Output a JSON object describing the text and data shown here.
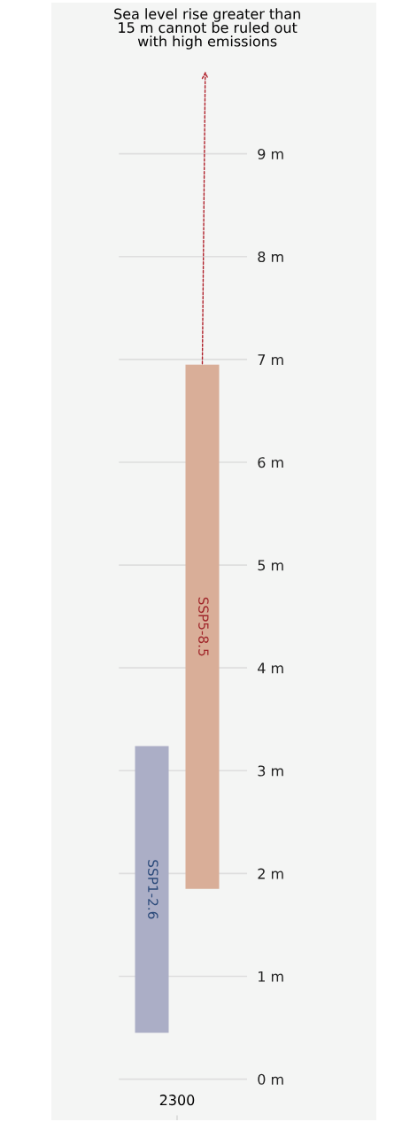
{
  "chart_data": {
    "type": "bar",
    "categories": [
      "2300"
    ],
    "series": [
      {
        "name": "SSP1-2.6",
        "color": "#abaec6",
        "values": [
          2.79
        ],
        "base": [
          0.45
        ]
      },
      {
        "name": "SSP5-8.5",
        "color": "#d9ae98",
        "values": [
          5.1
        ],
        "base": [
          1.85
        ]
      }
    ],
    "ylim": [
      -0.4,
      10.47
    ],
    "yticks": [
      {
        "value": 0,
        "label": "0 m"
      },
      {
        "value": 1,
        "label": "1 m"
      },
      {
        "value": 2,
        "label": "2 m"
      },
      {
        "value": 3,
        "label": "3 m"
      },
      {
        "value": 4,
        "label": "4 m"
      },
      {
        "value": 5,
        "label": "5 m"
      },
      {
        "value": 6,
        "label": "6 m"
      },
      {
        "value": 7,
        "label": "7 m"
      },
      {
        "value": 8,
        "label": "8 m"
      },
      {
        "value": 9,
        "label": "9 m"
      }
    ],
    "grid": "y",
    "annotations": [
      "Sea level rise greater than\n15 m cannot be ruled out\nwith high emissions"
    ]
  }
}
